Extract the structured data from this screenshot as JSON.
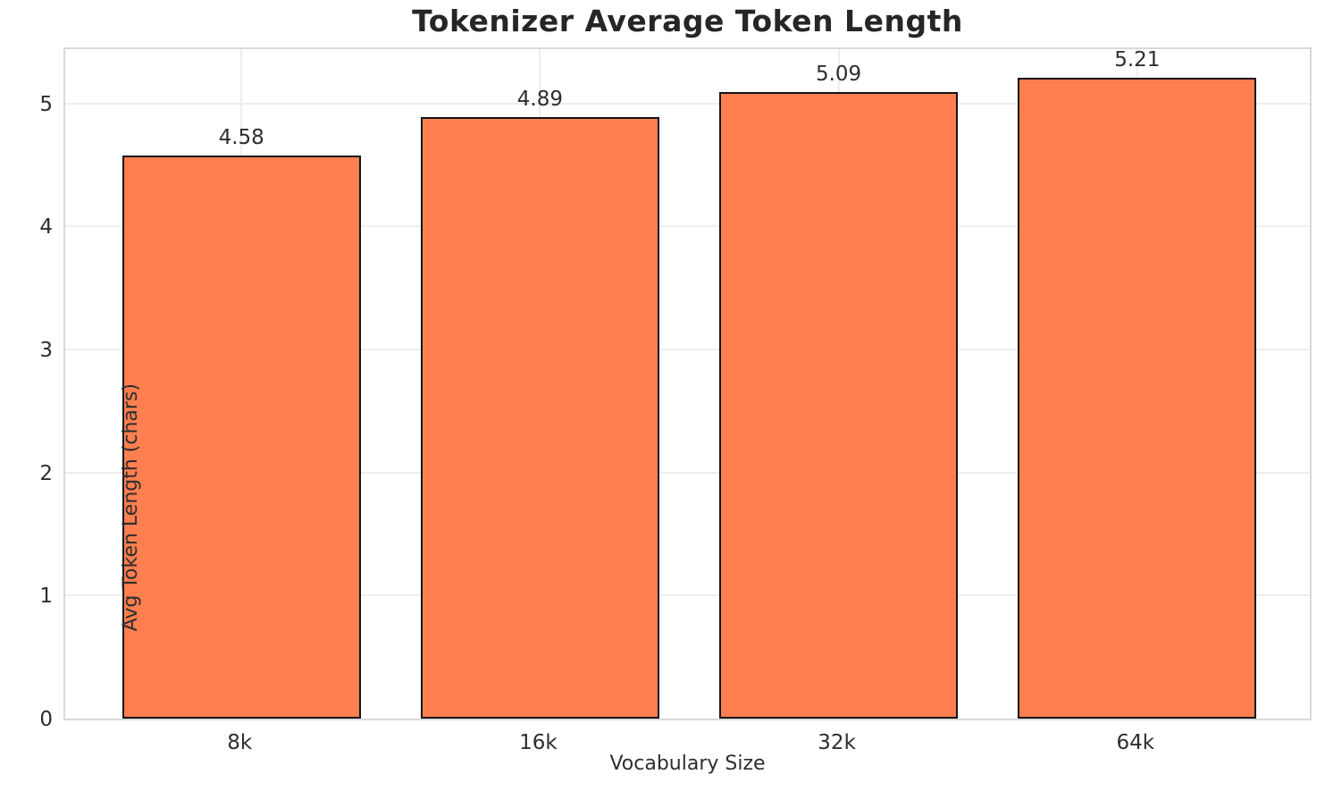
{
  "chart_data": {
    "type": "bar",
    "title": "Tokenizer Average Token Length",
    "categories": [
      "8k",
      "16k",
      "32k",
      "64k"
    ],
    "values": [
      4.58,
      4.89,
      5.09,
      5.21
    ],
    "value_label_format": "2dp",
    "xlabel": "Vocabulary Size",
    "ylabel": "Avg Token Length (chars)",
    "ylim": [
      0,
      5.47
    ],
    "yticks": [
      0,
      1,
      2,
      3,
      4,
      5
    ],
    "grid": true,
    "legend": "none",
    "colors": {
      "bar_fill": "#FF7F50",
      "bar_edge": "#141414",
      "grid": "#EDEDED",
      "spine": "#D9D9D9",
      "text": "#2E2E2E",
      "title_text": "#262626",
      "background": "#FFFFFF"
    }
  }
}
